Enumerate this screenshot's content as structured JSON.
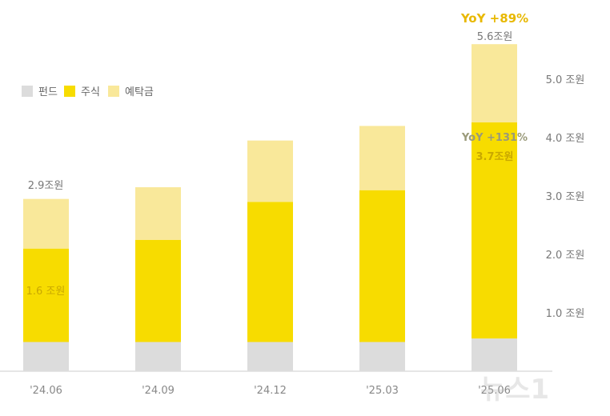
{
  "chart_data": {
    "type": "bar",
    "stacked": true,
    "categories": [
      "'24.06",
      "'24.09",
      "'24.12",
      "'25.03",
      "'25.06"
    ],
    "series": [
      {
        "name": "펀드",
        "values": [
          0.5,
          0.5,
          0.5,
          0.5,
          0.56
        ],
        "color": "#dcdcdc"
      },
      {
        "name": "주식",
        "values": [
          1.6,
          1.75,
          2.4,
          2.6,
          3.7
        ],
        "color": "#f7dc00"
      },
      {
        "name": "예탁금",
        "values": [
          0.85,
          0.9,
          1.05,
          1.1,
          1.34
        ],
        "color": "#f9e89a"
      }
    ],
    "ylim": [
      0,
      5.6
    ],
    "yticks": [
      {
        "value": 1.0,
        "label": "1.0 조원"
      },
      {
        "value": 2.0,
        "label": "2.0 조원"
      },
      {
        "value": 3.0,
        "label": "3.0 조원"
      },
      {
        "value": 4.0,
        "label": "4.0 조원"
      },
      {
        "value": 5.0,
        "label": "5.0 조원"
      }
    ],
    "axis_position": "right",
    "legend_placement": "top-left",
    "grid": false,
    "annotations": {
      "first_total": "2.9조원",
      "first_stock": "1.6 조원",
      "last_total": "5.6조원",
      "last_total_yoy": "YoY +89%",
      "last_stock_yoy": "YoY +131%",
      "last_stock": "3.7조원"
    },
    "colors": {
      "axis_text": "#888888",
      "yoy_gold": "#e8b800",
      "yoy_gray": "#9a9a7a",
      "stock_label": "#c9a800"
    }
  },
  "watermark": "뉴스1"
}
